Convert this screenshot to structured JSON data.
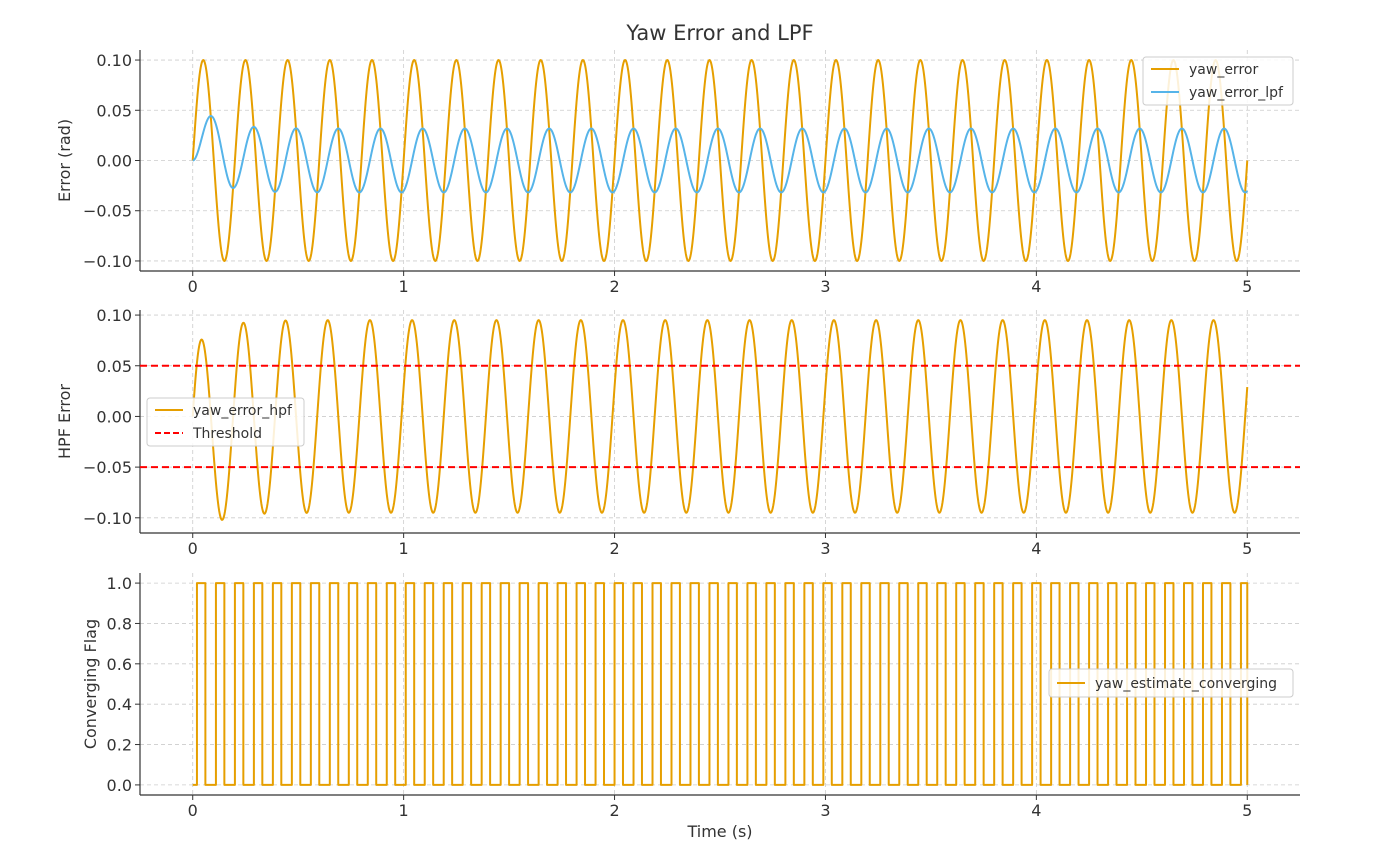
{
  "figure": {
    "title": "Yaw Error and LPF",
    "xlabel": "Time (s)"
  },
  "colors": {
    "orange": "#E69F00",
    "blue": "#56B4E9",
    "red": "#FF0000"
  },
  "chart_data": [
    {
      "type": "line",
      "title": "Yaw Error and LPF",
      "ylabel": "Error (rad)",
      "xlim": [
        -0.25,
        5.25
      ],
      "ylim": [
        -0.11,
        0.11
      ],
      "grid": true,
      "legend": "upper-right",
      "x_ticks": [
        0,
        1,
        2,
        3,
        4,
        5
      ],
      "x_tick_labels": [
        "0",
        "1",
        "2",
        "3",
        "4",
        "5"
      ],
      "y_ticks": [
        0.1,
        0.05,
        0.0,
        -0.05,
        -0.1
      ],
      "y_tick_labels": [
        "0.10",
        "0.05",
        "0.00",
        "−0.05",
        "−0.10"
      ],
      "x_range": [
        0,
        5
      ],
      "series": [
        {
          "name": "yaw_error",
          "color": "#E69F00",
          "function": "sine",
          "amplitude": 0.1,
          "frequency_hz": 5,
          "phase": 0
        },
        {
          "name": "yaw_error_lpf",
          "color": "#56B4E9",
          "function": "lowpass_of_sine",
          "amplitude": 0.0318,
          "frequency_hz": 5,
          "cutoff_hz": 1.6
        }
      ]
    },
    {
      "type": "line",
      "ylabel": "HPF Error",
      "xlim": [
        -0.25,
        5.25
      ],
      "ylim": [
        -0.115,
        0.105
      ],
      "grid": true,
      "legend": "center-left",
      "x_ticks": [
        0,
        1,
        2,
        3,
        4,
        5
      ],
      "x_tick_labels": [
        "0",
        "1",
        "2",
        "3",
        "4",
        "5"
      ],
      "y_ticks": [
        0.1,
        0.05,
        0.0,
        -0.05,
        -0.1
      ],
      "y_tick_labels": [
        "0.10",
        "0.05",
        "0.00",
        "−0.05",
        "−0.10"
      ],
      "x_range": [
        0,
        5
      ],
      "series": [
        {
          "name": "yaw_error_hpf",
          "color": "#E69F00",
          "function": "highpass_of_sine",
          "amplitude": 0.095,
          "frequency_hz": 5,
          "cutoff_hz": 1.6
        },
        {
          "name": "Threshold",
          "color": "#FF0000",
          "style": "dashed",
          "hlines": [
            0.05,
            -0.05
          ]
        }
      ]
    },
    {
      "type": "line",
      "ylabel": "Converging Flag",
      "xlabel": "Time (s)",
      "xlim": [
        -0.25,
        5.25
      ],
      "ylim": [
        -0.05,
        1.05
      ],
      "grid": true,
      "legend": "center-right",
      "x_ticks": [
        0,
        1,
        2,
        3,
        4,
        5
      ],
      "x_tick_labels": [
        "0",
        "1",
        "2",
        "3",
        "4",
        "5"
      ],
      "y_ticks": [
        1.0,
        0.8,
        0.6,
        0.4,
        0.2,
        0.0
      ],
      "y_tick_labels": [
        "1.0",
        "0.8",
        "0.6",
        "0.4",
        "0.2",
        "0.0"
      ],
      "x_range": [
        0,
        5
      ],
      "series": [
        {
          "name": "yaw_estimate_converging",
          "color": "#E69F00",
          "function": "square_wave",
          "frequency_hz": 10,
          "high": 1,
          "low": 0
        }
      ]
    }
  ]
}
